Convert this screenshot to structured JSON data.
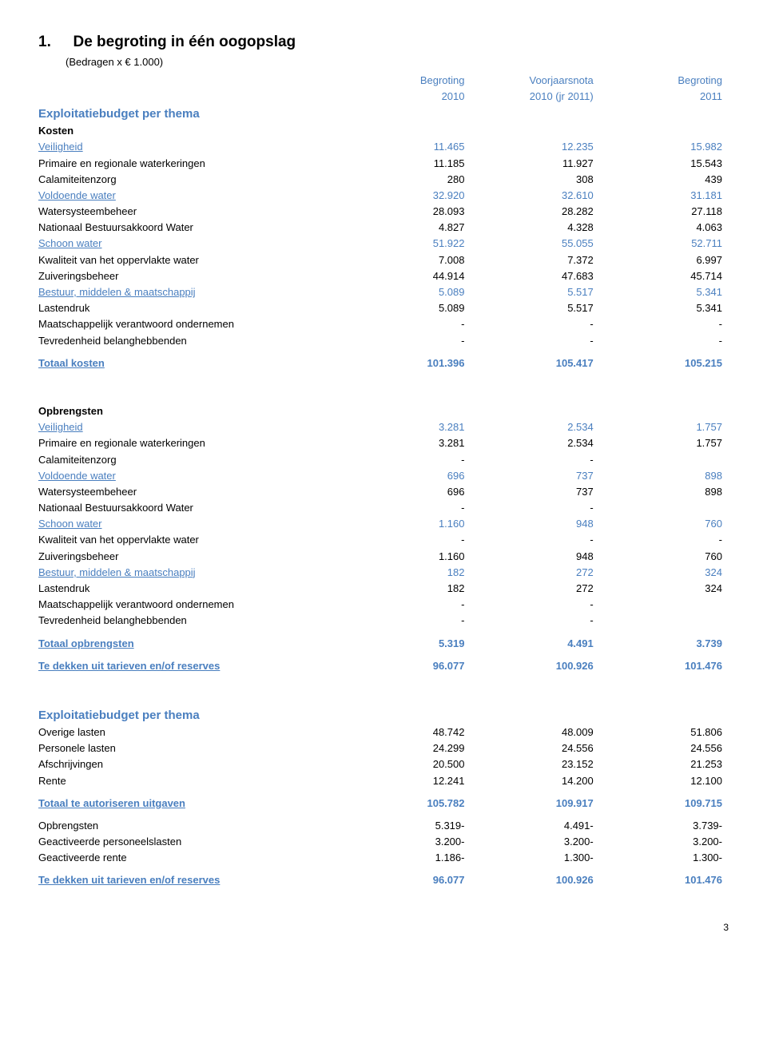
{
  "heading_num": "1.",
  "heading_title": "De begroting in één oogopslag",
  "subtitle": "(Bedragen x € 1.000)",
  "col_headers": {
    "c1a": "Begroting",
    "c1b": "2010",
    "c2a": "Voorjaarsnota",
    "c2b": "2010 (jr 2011)",
    "c3a": "Begroting",
    "c3b": "2011"
  },
  "section1_title": "Exploitatiebudget per thema",
  "kosten_label": "Kosten",
  "kosten": [
    {
      "label": "Veiligheid",
      "c1": "11.465",
      "c2": "12.235",
      "c3": "15.982",
      "style": "blue"
    },
    {
      "label": "Primaire en regionale waterkeringen",
      "c1": "11.185",
      "c2": "11.927",
      "c3": "15.543",
      "style": "plain"
    },
    {
      "label": "Calamiteitenzorg",
      "c1": "280",
      "c2": "308",
      "c3": "439",
      "style": "plain"
    },
    {
      "label": "Voldoende water",
      "c1": "32.920",
      "c2": "32.610",
      "c3": "31.181",
      "style": "blue"
    },
    {
      "label": "Watersysteembeheer",
      "c1": "28.093",
      "c2": "28.282",
      "c3": "27.118",
      "style": "plain"
    },
    {
      "label": "Nationaal Bestuursakkoord Water",
      "c1": "4.827",
      "c2": "4.328",
      "c3": "4.063",
      "style": "plain"
    },
    {
      "label": "Schoon water",
      "c1": "51.922",
      "c2": "55.055",
      "c3": "52.711",
      "style": "blue"
    },
    {
      "label": "Kwaliteit van het oppervlakte water",
      "c1": "7.008",
      "c2": "7.372",
      "c3": "6.997",
      "style": "plain"
    },
    {
      "label": "Zuiveringsbeheer",
      "c1": "44.914",
      "c2": "47.683",
      "c3": "45.714",
      "style": "plain"
    },
    {
      "label": "Bestuur, middelen & maatschappij",
      "c1": "5.089",
      "c2": "5.517",
      "c3": "5.341",
      "style": "blue"
    },
    {
      "label": "Lastendruk",
      "c1": "5.089",
      "c2": "5.517",
      "c3": "5.341",
      "style": "plain"
    },
    {
      "label": "Maatschappelijk verantwoord ondernemen",
      "c1": "-",
      "c2": "-",
      "c3": "-",
      "style": "plain"
    },
    {
      "label": "Tevredenheid belanghebbenden",
      "c1": "-",
      "c2": "-",
      "c3": "-",
      "style": "plain"
    }
  ],
  "totaal_kosten": {
    "label": "Totaal kosten",
    "c1": "101.396",
    "c2": "105.417",
    "c3": "105.215"
  },
  "opbrengsten_label": "Opbrengsten",
  "opbrengsten": [
    {
      "label": "Veiligheid",
      "c1": "3.281",
      "c2": "2.534",
      "c3": "1.757",
      "style": "blue"
    },
    {
      "label": "Primaire en regionale waterkeringen",
      "c1": "3.281",
      "c2": "2.534",
      "c3": "1.757",
      "style": "plain"
    },
    {
      "label": "Calamiteitenzorg",
      "c1": "-",
      "c2": "-",
      "c3": "",
      "style": "plain"
    },
    {
      "label": "Voldoende water",
      "c1": "696",
      "c2": "737",
      "c3": "898",
      "style": "blue"
    },
    {
      "label": "Watersysteembeheer",
      "c1": "696",
      "c2": "737",
      "c3": "898",
      "style": "plain"
    },
    {
      "label": "Nationaal Bestuursakkoord Water",
      "c1": "-",
      "c2": "-",
      "c3": "",
      "style": "plain"
    },
    {
      "label": "Schoon water",
      "c1": "1.160",
      "c2": "948",
      "c3": "760",
      "style": "blue"
    },
    {
      "label": "Kwaliteit van het oppervlakte water",
      "c1": "-",
      "c2": "-",
      "c3": "-",
      "style": "plain"
    },
    {
      "label": "Zuiveringsbeheer",
      "c1": "1.160",
      "c2": "948",
      "c3": "760",
      "style": "plain"
    },
    {
      "label": "Bestuur, middelen & maatschappij",
      "c1": "182",
      "c2": "272",
      "c3": "324",
      "style": "blue"
    },
    {
      "label": "Lastendruk",
      "c1": "182",
      "c2": "272",
      "c3": "324",
      "style": "plain"
    },
    {
      "label": "Maatschappelijk verantwoord ondernemen",
      "c1": "-",
      "c2": "-",
      "c3": "",
      "style": "plain"
    },
    {
      "label": "Tevredenheid belanghebbenden",
      "c1": "-",
      "c2": "-",
      "c3": "",
      "style": "plain"
    }
  ],
  "totaal_opbrengsten": {
    "label": "Totaal opbrengsten",
    "c1": "5.319",
    "c2": "4.491",
    "c3": "3.739"
  },
  "te_dekken": {
    "label": "Te dekken uit tarieven en/of reserves",
    "c1": "96.077",
    "c2": "100.926",
    "c3": "101.476"
  },
  "section2_title": "Exploitatiebudget per thema",
  "uitgaven": [
    {
      "label": "Overige lasten",
      "c1": "48.742",
      "c2": "48.009",
      "c3": "51.806"
    },
    {
      "label": "Personele lasten",
      "c1": "24.299",
      "c2": "24.556",
      "c3": "24.556"
    },
    {
      "label": "Afschrijvingen",
      "c1": "20.500",
      "c2": "23.152",
      "c3": "21.253"
    },
    {
      "label": "Rente",
      "c1": "12.241",
      "c2": "14.200",
      "c3": "12.100"
    }
  ],
  "totaal_uitgaven": {
    "label": "Totaal te autoriseren uitgaven",
    "c1": "105.782",
    "c2": "109.917",
    "c3": "109.715"
  },
  "aftrek": [
    {
      "label": "Opbrengsten",
      "c1": "5.319-",
      "c2": "4.491-",
      "c3": "3.739-"
    },
    {
      "label": "Geactiveerde personeelslasten",
      "c1": "3.200-",
      "c2": "3.200-",
      "c3": "3.200-"
    },
    {
      "label": "Geactiveerde rente",
      "c1": "1.186-",
      "c2": "1.300-",
      "c3": "1.300-"
    }
  ],
  "te_dekken2": {
    "label": "Te dekken uit tarieven en/of reserves",
    "c1": "96.077",
    "c2": "100.926",
    "c3": "101.476"
  },
  "page_num": "3"
}
